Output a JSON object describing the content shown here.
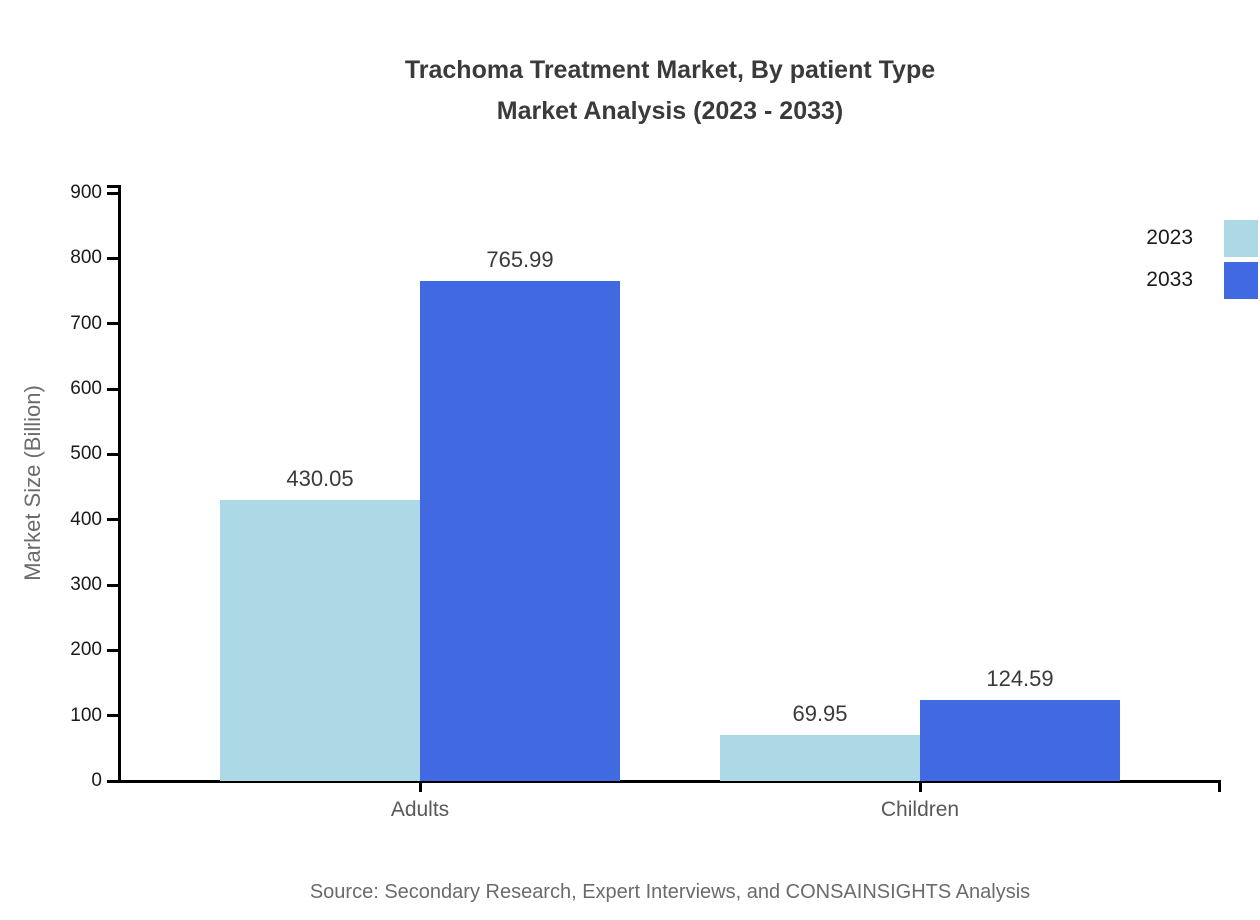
{
  "chart_data": {
    "type": "bar",
    "title_line1": "Trachoma Treatment Market, By patient Type",
    "title_line2": "Market Analysis (2023 - 2033)",
    "ylabel": "Market Size (Billion)",
    "xlabel": "",
    "categories": [
      "Adults",
      "Children"
    ],
    "series": [
      {
        "name": "2023",
        "color": "#ADD8E6",
        "values": [
          430.05,
          69.95
        ]
      },
      {
        "name": "2033",
        "color": "#4169E1",
        "values": [
          765.99,
          124.59
        ]
      }
    ],
    "value_labels": [
      [
        "430.05",
        "69.95"
      ],
      [
        "765.99",
        "124.59"
      ]
    ],
    "ylim": [
      0,
      900
    ],
    "yticks": [
      0,
      100,
      200,
      300,
      400,
      500,
      600,
      700,
      800,
      900
    ],
    "grid": false,
    "legend_position": "top-right",
    "source": "Source: Secondary Research, Expert Interviews, and CONSAINSIGHTS Analysis"
  },
  "colors": {
    "axis": "#000000",
    "title_text": "#3a3a3a",
    "tick_text": "#1a1a1a",
    "value_text": "#3a3a3a",
    "category_text": "#595959",
    "muted_text": "#6b6b6b",
    "background": "#ffffff"
  }
}
